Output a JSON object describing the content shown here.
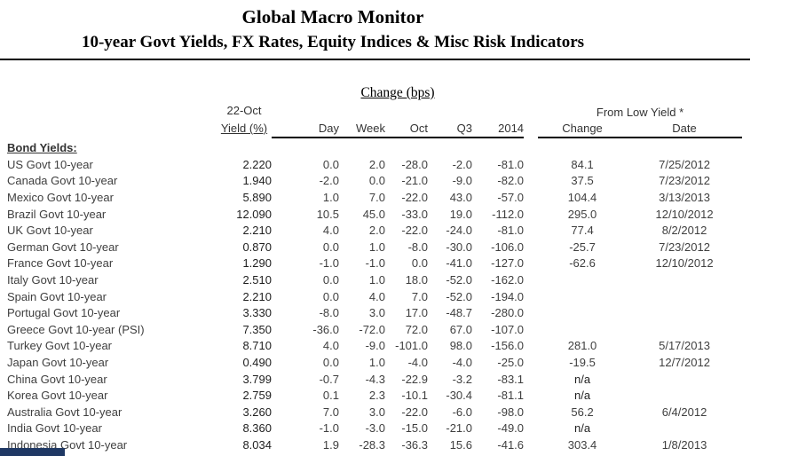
{
  "page": {
    "title": "Global Macro Monitor",
    "subtitle": "10-year Govt Yields, FX Rates, Equity Indices & Misc Risk Indicators"
  },
  "table": {
    "group_headers": {
      "change_bps": "Change (bps)",
      "from_low_yield": "From Low Yield *"
    },
    "col_headers": {
      "date_top": "22-Oct",
      "yield": "Yield (%)",
      "day": "Day",
      "week": "Week",
      "oct": "Oct",
      "q3": "Q3",
      "y2014": "2014",
      "low_change": "Change",
      "low_date": "Date"
    },
    "section_label": "Bond Yields:",
    "rows": [
      {
        "label": "US Govt 10-year",
        "yield": "2.220",
        "day": "0.0",
        "week": "2.0",
        "oct": "-28.0",
        "q3": "-2.0",
        "y2014": "-81.0",
        "low_change": "84.1",
        "low_date": "7/25/2012"
      },
      {
        "label": "Canada Govt 10-year",
        "yield": "1.940",
        "day": "-2.0",
        "week": "0.0",
        "oct": "-21.0",
        "q3": "-9.0",
        "y2014": "-82.0",
        "low_change": "37.5",
        "low_date": "7/23/2012"
      },
      {
        "label": "Mexico Govt 10-year",
        "yield": "5.890",
        "day": "1.0",
        "week": "7.0",
        "oct": "-22.0",
        "q3": "43.0",
        "y2014": "-57.0",
        "low_change": "104.4",
        "low_date": "3/13/2013"
      },
      {
        "label": "Brazil Govt 10-year",
        "yield": "12.090",
        "day": "10.5",
        "week": "45.0",
        "oct": "-33.0",
        "q3": "19.0",
        "y2014": "-112.0",
        "low_change": "295.0",
        "low_date": "12/10/2012"
      },
      {
        "label": "UK Govt 10-year",
        "yield": "2.210",
        "day": "4.0",
        "week": "2.0",
        "oct": "-22.0",
        "q3": "-24.0",
        "y2014": "-81.0",
        "low_change": "77.4",
        "low_date": "8/2/2012"
      },
      {
        "label": "German Govt 10-year",
        "yield": "0.870",
        "day": "0.0",
        "week": "1.0",
        "oct": "-8.0",
        "q3": "-30.0",
        "y2014": "-106.0",
        "low_change": "-25.7",
        "low_date": "7/23/2012"
      },
      {
        "label": "France Govt 10-year",
        "yield": "1.290",
        "day": "-1.0",
        "week": "-1.0",
        "oct": "0.0",
        "q3": "-41.0",
        "y2014": "-127.0",
        "low_change": "-62.6",
        "low_date": "12/10/2012"
      },
      {
        "label": "Italy Govt 10-year",
        "yield": "2.510",
        "day": "0.0",
        "week": "1.0",
        "oct": "18.0",
        "q3": "-52.0",
        "y2014": "-162.0",
        "low_change": "",
        "low_date": ""
      },
      {
        "label": "Spain Govt 10-year",
        "yield": "2.210",
        "day": "0.0",
        "week": "4.0",
        "oct": "7.0",
        "q3": "-52.0",
        "y2014": "-194.0",
        "low_change": "",
        "low_date": ""
      },
      {
        "label": "Portugal Govt 10-year",
        "yield": "3.330",
        "day": "-8.0",
        "week": "3.0",
        "oct": "17.0",
        "q3": "-48.7",
        "y2014": "-280.0",
        "low_change": "",
        "low_date": ""
      },
      {
        "label": "Greece Govt 10-year (PSI)",
        "yield": "7.350",
        "day": "-36.0",
        "week": "-72.0",
        "oct": "72.0",
        "q3": "67.0",
        "y2014": "-107.0",
        "low_change": "",
        "low_date": ""
      },
      {
        "label": "Turkey Govt 10-year",
        "yield": "8.710",
        "day": "4.0",
        "week": "-9.0",
        "oct": "-101.0",
        "q3": "98.0",
        "y2014": "-156.0",
        "low_change": "281.0",
        "low_date": "5/17/2013"
      },
      {
        "label": "Japan Govt 10-year",
        "yield": "0.490",
        "day": "0.0",
        "week": "1.0",
        "oct": "-4.0",
        "q3": "-4.0",
        "y2014": "-25.0",
        "low_change": "-19.5",
        "low_date": "12/7/2012"
      },
      {
        "label": "China Govt 10-year",
        "yield": "3.799",
        "day": "-0.7",
        "week": "-4.3",
        "oct": "-22.9",
        "q3": "-3.2",
        "y2014": "-83.1",
        "low_change": "n/a",
        "low_date": ""
      },
      {
        "label": "Korea Govt 10-year",
        "yield": "2.759",
        "day": "0.1",
        "week": "2.3",
        "oct": "-10.1",
        "q3": "-30.4",
        "y2014": "-81.1",
        "low_change": "n/a",
        "low_date": ""
      },
      {
        "label": "Australia Govt 10-year",
        "yield": "3.260",
        "day": "7.0",
        "week": "3.0",
        "oct": "-22.0",
        "q3": "-6.0",
        "y2014": "-98.0",
        "low_change": "56.2",
        "low_date": "6/4/2012"
      },
      {
        "label": "India Govt 10-year",
        "yield": "8.360",
        "day": "-1.0",
        "week": "-3.0",
        "oct": "-15.0",
        "q3": "-21.0",
        "y2014": "-49.0",
        "low_change": "n/a",
        "low_date": ""
      },
      {
        "label": "Indonesia Govt 10-year",
        "yield": "8.034",
        "day": "1.9",
        "week": "-28.3",
        "oct": "-36.3",
        "q3": "15.6",
        "y2014": "-41.6",
        "low_change": "303.4",
        "low_date": "1/8/2013"
      }
    ]
  },
  "colors": {
    "text": "#3f3f3f",
    "bold_text": "#1f1f1f",
    "rule": "#000000",
    "section_bar": "#1f3864"
  }
}
